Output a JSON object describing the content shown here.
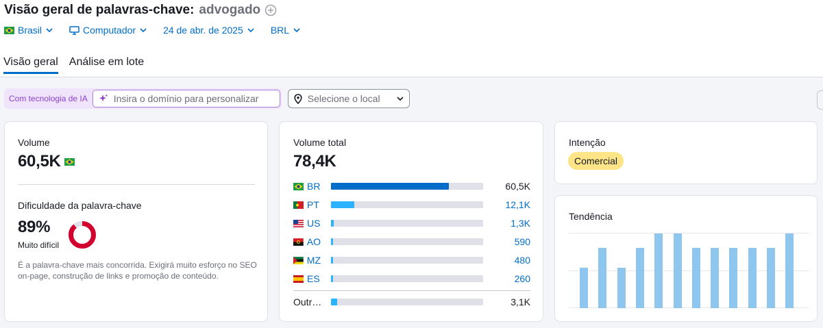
{
  "header": {
    "title": "Visão geral de palavras-chave:",
    "keyword": "advogado",
    "filters": {
      "country": "Brasil",
      "device": "Computador",
      "date": "24 de abr. de 2025",
      "currency": "BRL"
    }
  },
  "tabs": [
    "Visão geral",
    "Análise em lote"
  ],
  "ai": {
    "label": "Com tecnologia de IA",
    "placeholder": "Insira o domínio para personalizar",
    "location_placeholder": "Selecione o local"
  },
  "volume_card": {
    "volume_label": "Volume",
    "volume_value": "60,5K",
    "kd_label": "Dificuldade da palavra-chave",
    "kd_value": "89%",
    "kd_percent": 89,
    "kd_level": "Muito difícil",
    "kd_description": "É a palavra-chave mais concorrida. Exigirá muito esforço no SEO on-page, construção de links e promoção de conteúdo.",
    "colors": {
      "kd_ring": "#d1002f",
      "kd_track": "#dfe0e8"
    }
  },
  "total_card": {
    "label": "Volume total",
    "value": "78,4K",
    "rows": [
      {
        "code": "BR",
        "value": "60,5K",
        "share": 0.775,
        "flag": "brazil-flag-icon"
      },
      {
        "code": "PT",
        "value": "12,1K",
        "share": 0.155,
        "flag": "portugal-flag-icon"
      },
      {
        "code": "US",
        "value": "1,3K",
        "share": 0.017,
        "flag": "usa-flag-icon"
      },
      {
        "code": "AO",
        "value": "590",
        "share": 0.008,
        "flag": "angola-flag-icon"
      },
      {
        "code": "MZ",
        "value": "480",
        "share": 0.006,
        "flag": "mozambique-flag-icon"
      },
      {
        "code": "ES",
        "value": "260",
        "share": 0.004,
        "flag": "spain-flag-icon"
      }
    ],
    "other": {
      "code": "Outr…",
      "value": "3,1K",
      "share": 0.04
    },
    "colors": {
      "primary": "#006dca",
      "secondary": "#2bb3ff",
      "track": "#dfe0e8"
    }
  },
  "intent_card": {
    "label": "Intenção",
    "badge": "Comercial",
    "colors": {
      "badge": "#fde487"
    }
  },
  "trend_card": {
    "label": "Tendência",
    "values": [
      0.54,
      0.81,
      0.54,
      0.81,
      1.0,
      1.0,
      0.81,
      0.81,
      0.81,
      0.81,
      0.81,
      1.0
    ],
    "colors": {
      "bar": "#8fc6ee"
    }
  }
}
